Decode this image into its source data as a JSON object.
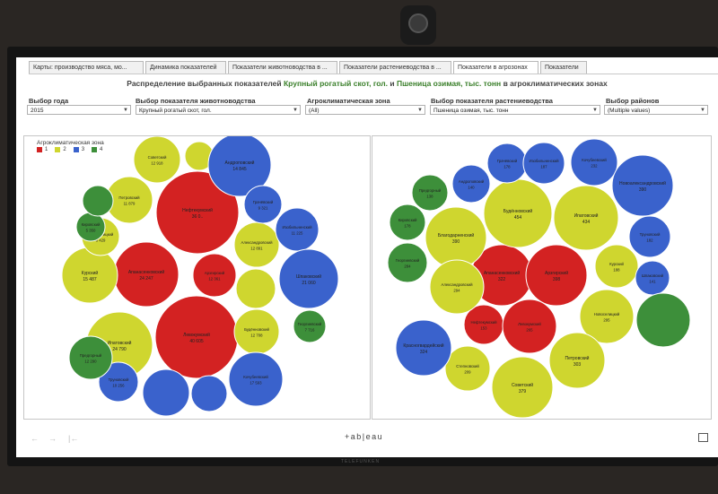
{
  "tabs": [
    {
      "label": "Карты: производство мяса, мо..."
    },
    {
      "label": "Динамика показателей"
    },
    {
      "label": "Показатели животноводства в ..."
    },
    {
      "label": "Показатели растениеводства в ..."
    },
    {
      "label": "Показатели в агрозонах"
    },
    {
      "label": "Показатели"
    }
  ],
  "active_tab": "Показатели в агрозонах",
  "title": {
    "prefix": "Распределение выбранных показателей",
    "ind1": "Крупный рогатый скот, гол.",
    "mid": "и",
    "ind2": "Пшеница озимая, тыс. тонн",
    "suffix": "в агроклиматических зонах"
  },
  "filters": {
    "year": {
      "label": "Выбор года",
      "value": "2015"
    },
    "livestock": {
      "label": "Выбор показателя животноводства",
      "value": "Крупный рогатый скот, гол."
    },
    "zone": {
      "label": "Агроклиматическая зона",
      "value": "(All)"
    },
    "crop": {
      "label": "Выбор показателя растениеводства",
      "value": "Пшеница озимая, тыс. тонн"
    },
    "district": {
      "label": "Выбор районов",
      "value": "(Multiple values)"
    }
  },
  "legend": {
    "title": "Агроклиматическая зона",
    "items": [
      {
        "label": "1",
        "color": "#d32222"
      },
      {
        "label": "2",
        "color": "#cfd62f"
      },
      {
        "label": "3",
        "color": "#3a62cc"
      },
      {
        "label": "4",
        "color": "#3d8f3a"
      }
    ]
  },
  "colors": {
    "1": "#d32222",
    "2": "#cfd62f",
    "3": "#3a62cc",
    "4": "#3d8f3a"
  },
  "chart_data": [
    {
      "type": "bubble",
      "title": "Крупный рогатый скот, гол.",
      "bubbles": [
        {
          "name": "Нефтекумский",
          "value": "36 0..",
          "zone": 1
        },
        {
          "name": "Левокумский",
          "value": "40 605",
          "zone": 1
        },
        {
          "name": "Апанасенковский",
          "value": "24 247",
          "zone": 1
        },
        {
          "name": "Арзгирский",
          "value": "12 361",
          "zone": 1
        },
        {
          "name": "Ипатовский",
          "value": "24 790",
          "zone": 2
        },
        {
          "name": "Курский",
          "value": "15 487",
          "zone": 2
        },
        {
          "name": "Петровский",
          "value": "11 879",
          "zone": 2
        },
        {
          "name": "Советский",
          "value": "12 918",
          "zone": 2
        },
        {
          "name": "Александровский",
          "value": "12 891",
          "zone": 2
        },
        {
          "name": "Будённовский",
          "value": "12 708",
          "zone": 2
        },
        {
          "name": "Новоселицкий",
          "value": "8 429",
          "zone": 2
        },
        {
          "name": "",
          "value": "",
          "zone": 2
        },
        {
          "name": "",
          "value": "",
          "zone": 2
        },
        {
          "name": "Андроповский",
          "value": "14 845",
          "zone": 3
        },
        {
          "name": "Грачёвский",
          "value": "9 321",
          "zone": 3
        },
        {
          "name": "Изобильненский",
          "value": "11 225",
          "zone": 3
        },
        {
          "name": "Шпаковский",
          "value": "21 060",
          "zone": 3
        },
        {
          "name": "Кочубеевский",
          "value": "17 593",
          "zone": 3
        },
        {
          "name": "Труновский",
          "value": "10 256",
          "zone": 3
        },
        {
          "name": "",
          "value": "",
          "zone": 3
        },
        {
          "name": "",
          "value": "",
          "zone": 3
        },
        {
          "name": "Кировский",
          "value": "5 350",
          "zone": 4
        },
        {
          "name": "Предгорный",
          "value": "12 290",
          "zone": 4
        },
        {
          "name": "Георгиевский",
          "value": "7 716",
          "zone": 4
        },
        {
          "name": "",
          "value": "",
          "zone": 4
        }
      ]
    },
    {
      "type": "bubble",
      "title": "Пшеница озимая, тыс. тонн",
      "bubbles": [
        {
          "name": "Апанасенковский",
          "value": "322",
          "zone": 1
        },
        {
          "name": "Арзгирский",
          "value": "398",
          "zone": 1
        },
        {
          "name": "Нефтекумский",
          "value": "153",
          "zone": 1
        },
        {
          "name": "Левокумский",
          "value": "265",
          "zone": 1
        },
        {
          "name": "Будённовский",
          "value": "454",
          "zone": 2
        },
        {
          "name": "Ипатовский",
          "value": "434",
          "zone": 2
        },
        {
          "name": "Благодарненский",
          "value": "390",
          "zone": 2
        },
        {
          "name": "Александровский",
          "value": "294",
          "zone": 2
        },
        {
          "name": "Курский",
          "value": "188",
          "zone": 2
        },
        {
          "name": "Новоселицкий",
          "value": "295",
          "zone": 2
        },
        {
          "name": "Степновский",
          "value": "209",
          "zone": 2
        },
        {
          "name": "Советский",
          "value": "379",
          "zone": 2
        },
        {
          "name": "Петровский",
          "value": "303",
          "zone": 2
        },
        {
          "name": "Грачёвский",
          "value": "178",
          "zone": 3
        },
        {
          "name": "Изобильненский",
          "value": "187",
          "zone": 3
        },
        {
          "name": "Кочубеевский",
          "value": "232",
          "zone": 3
        },
        {
          "name": "Андроповский",
          "value": "140",
          "zone": 3
        },
        {
          "name": "Новоалександровский",
          "value": "390",
          "zone": 3
        },
        {
          "name": "Труновский",
          "value": "182",
          "zone": 3
        },
        {
          "name": "Шпаковский",
          "value": "141",
          "zone": 3
        },
        {
          "name": "Красногвардейский",
          "value": "324",
          "zone": 3
        },
        {
          "name": "Предгорный",
          "value": "138",
          "zone": 4
        },
        {
          "name": "Кировский",
          "value": "178",
          "zone": 4
        },
        {
          "name": "Георгиевский",
          "value": "284",
          "zone": 4
        },
        {
          "name": "",
          "value": "",
          "zone": 4
        }
      ]
    }
  ],
  "footer": {
    "brand": "+ab|eau"
  },
  "device_brand": "TELEFUNKEN"
}
